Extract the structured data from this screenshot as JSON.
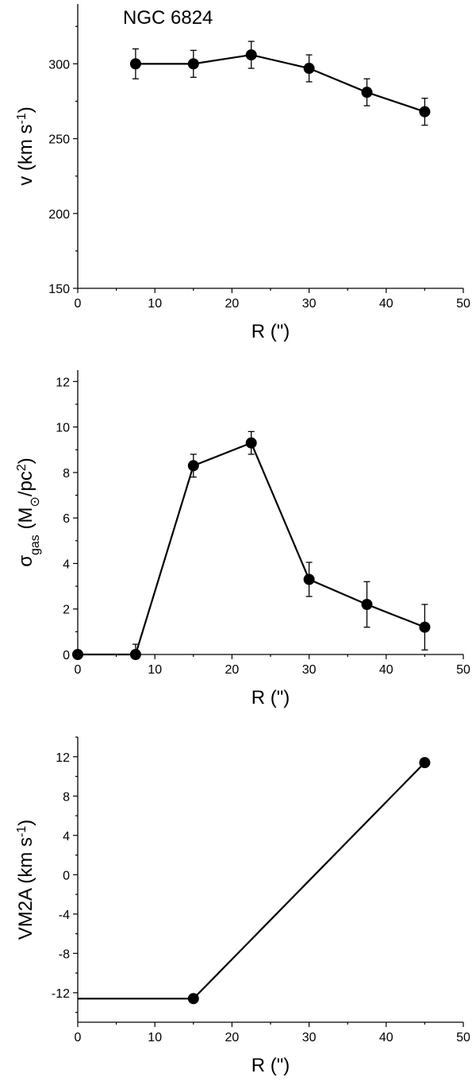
{
  "chart_data": [
    {
      "type": "line",
      "title": "NGC 6824",
      "xlabel": "R (\")",
      "ylabel": "v (km s",
      "ylabel_sup": "-1",
      "ylabel_tail": ")",
      "xlim": [
        0,
        50
      ],
      "ylim": [
        150,
        340
      ],
      "xticks": [
        0,
        10,
        20,
        30,
        40,
        50
      ],
      "xtick_labels": [
        "0",
        "10",
        "20",
        "30",
        "40",
        "50"
      ],
      "yticks": [
        150,
        200,
        250,
        300
      ],
      "ytick_labels": [
        "150",
        "200",
        "250",
        "300"
      ],
      "series": [
        {
          "name": "v",
          "x": [
            7.5,
            15,
            22.5,
            30,
            37.5,
            45
          ],
          "y": [
            300,
            300,
            306,
            297,
            281,
            268
          ],
          "yerr": [
            10,
            9,
            9,
            9,
            9,
            9
          ]
        }
      ]
    },
    {
      "type": "line",
      "title": "",
      "xlabel": "R (\")",
      "ylabel_symbol": "σ",
      "ylabel_sub": "gas",
      "ylabel_mid": " (M",
      "ylabel_sub2": "⊙",
      "ylabel_mid2": "/pc",
      "ylabel_sup": "2",
      "ylabel_tail": ")",
      "xlim": [
        0,
        50
      ],
      "ylim": [
        0,
        12.5
      ],
      "xticks": [
        0,
        10,
        20,
        30,
        40,
        50
      ],
      "xtick_labels": [
        "0",
        "10",
        "20",
        "30",
        "40",
        "50"
      ],
      "yticks": [
        0,
        2,
        4,
        6,
        8,
        10,
        12
      ],
      "ytick_labels": [
        "0",
        "2",
        "4",
        "6",
        "8",
        "10",
        "12"
      ],
      "series": [
        {
          "name": "sigma_gas",
          "x": [
            0,
            7.5,
            15,
            22.5,
            30,
            37.5,
            45
          ],
          "y": [
            0,
            0,
            8.3,
            9.3,
            3.3,
            2.2,
            1.2
          ],
          "yerr": [
            0,
            0.45,
            0.5,
            0.5,
            0.75,
            1.0,
            1.0
          ]
        }
      ]
    },
    {
      "type": "line",
      "title": "",
      "xlabel": "R (\")",
      "ylabel": "VM2A (km s",
      "ylabel_sup": "-1",
      "ylabel_tail": ")",
      "xlim": [
        0,
        50
      ],
      "ylim": [
        -15,
        14
      ],
      "xticks": [
        0,
        10,
        20,
        30,
        40,
        50
      ],
      "xtick_labels": [
        "0",
        "10",
        "20",
        "30",
        "40",
        "50"
      ],
      "yticks": [
        -12,
        -8,
        -4,
        0,
        4,
        8,
        12
      ],
      "ytick_labels": [
        "-12",
        "-8",
        "-4",
        "0",
        "4",
        "8",
        "12"
      ],
      "series": [
        {
          "name": "VM2A",
          "x": [
            0,
            15,
            45
          ],
          "y": [
            -12.6,
            -12.6,
            11.4
          ],
          "markers": [
            false,
            true,
            true
          ]
        }
      ]
    }
  ]
}
